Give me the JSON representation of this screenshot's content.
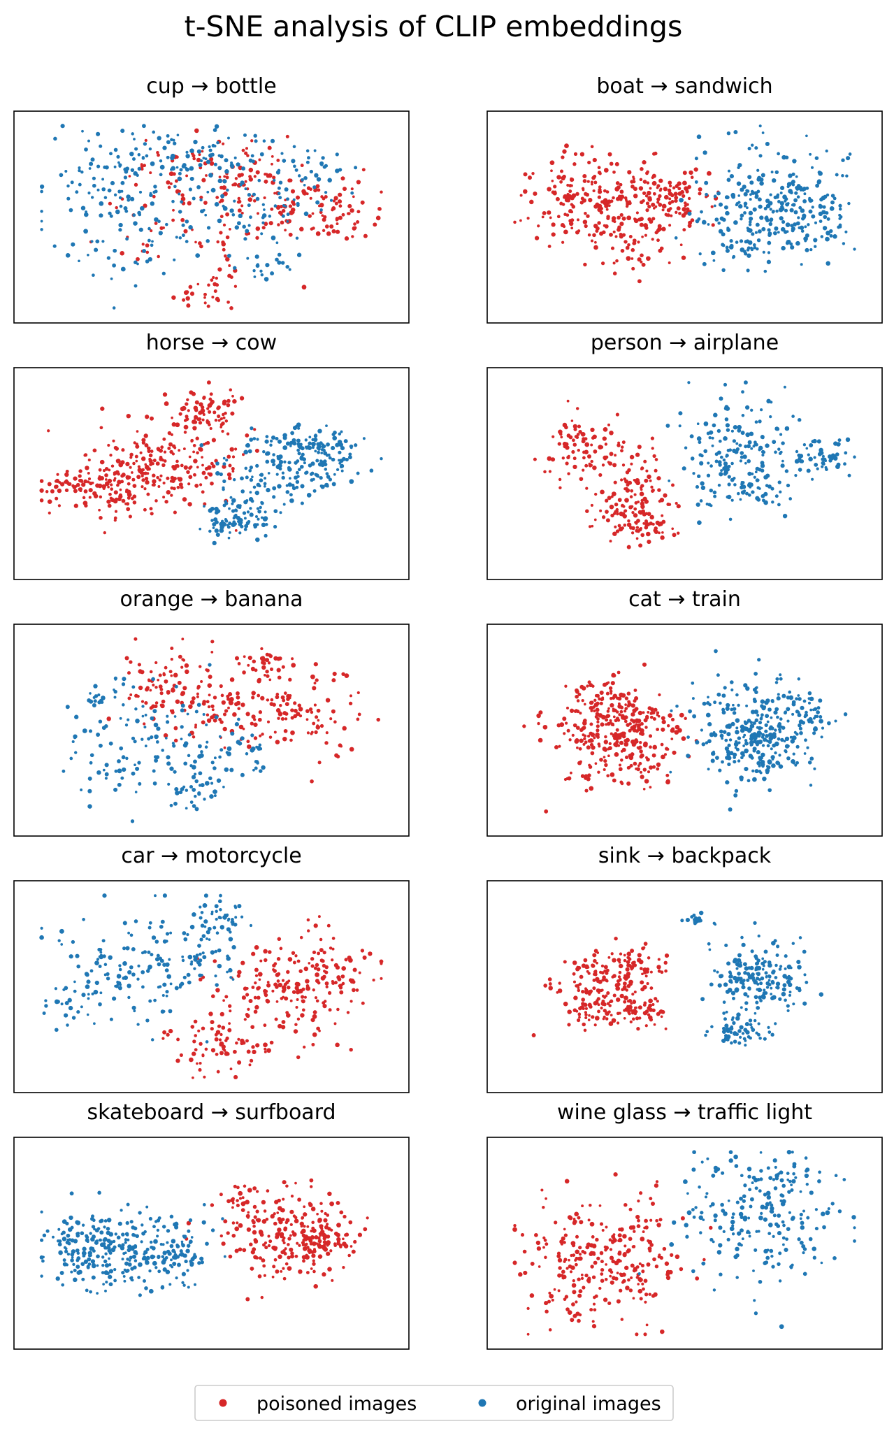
{
  "title": "t-SNE analysis of CLIP embeddings",
  "colors": {
    "poisoned": "#d62728",
    "original": "#1f77b4"
  },
  "legend": {
    "placement": "bottom-center",
    "items": [
      {
        "label": "poisoned images",
        "color": "#d62728"
      },
      {
        "label": "original images",
        "color": "#1f77b4"
      }
    ]
  },
  "chart_data": [
    {
      "type": "scatter",
      "title": "cup → bottle",
      "source": "cup",
      "target": "bottle",
      "separation": "mixed",
      "xlim": [
        0,
        1
      ],
      "ylim": [
        0,
        1
      ],
      "grid": false,
      "axis_ticks": false,
      "series": [
        {
          "name": "poisoned images",
          "clusters": [
            [
              0.48,
              0.47,
              0.13,
              0.16,
              90
            ],
            [
              0.74,
              0.56,
              0.09,
              0.08,
              70
            ],
            [
              0.46,
              0.73,
              0.08,
              0.09,
              40
            ],
            [
              0.62,
              0.72,
              0.06,
              0.07,
              30
            ],
            [
              0.48,
              0.13,
              0.04,
              0.05,
              25
            ],
            [
              0.83,
              0.49,
              0.05,
              0.05,
              30
            ]
          ]
        },
        {
          "name": "original images",
          "clusters": [
            [
              0.32,
              0.71,
              0.13,
              0.11,
              140
            ],
            [
              0.6,
              0.52,
              0.07,
              0.09,
              50
            ],
            [
              0.74,
              0.68,
              0.06,
              0.09,
              40
            ],
            [
              0.3,
              0.41,
              0.1,
              0.12,
              60
            ],
            [
              0.66,
              0.27,
              0.05,
              0.05,
              20
            ],
            [
              0.5,
              0.8,
              0.06,
              0.05,
              30
            ]
          ]
        }
      ]
    },
    {
      "type": "scatter",
      "title": "boat → sandwich",
      "source": "boat",
      "target": "sandwich",
      "separation": "separated",
      "xlim": [
        0,
        1
      ],
      "ylim": [
        0,
        1
      ],
      "grid": false,
      "axis_ticks": false,
      "series": [
        {
          "name": "poisoned images",
          "clusters": [
            [
              0.27,
              0.58,
              0.09,
              0.11,
              200
            ],
            [
              0.44,
              0.58,
              0.05,
              0.09,
              70
            ],
            [
              0.39,
              0.35,
              0.05,
              0.07,
              40
            ],
            [
              0.5,
              0.58,
              0.04,
              0.07,
              40
            ]
          ]
        },
        {
          "name": "original images",
          "clusters": [
            [
              0.71,
              0.56,
              0.09,
              0.13,
              220
            ],
            [
              0.83,
              0.56,
              0.05,
              0.08,
              60
            ],
            [
              0.66,
              0.38,
              0.05,
              0.05,
              30
            ]
          ]
        }
      ]
    },
    {
      "type": "scatter",
      "title": "horse → cow",
      "source": "horse",
      "target": "cow",
      "separation": "partial",
      "xlim": [
        0,
        1
      ],
      "ylim": [
        0,
        1
      ],
      "grid": false,
      "axis_ticks": false,
      "series": [
        {
          "name": "poisoned images",
          "clusters": [
            [
              0.24,
              0.44,
              0.07,
              0.07,
              120
            ],
            [
              0.36,
              0.54,
              0.08,
              0.12,
              120
            ],
            [
              0.49,
              0.8,
              0.04,
              0.05,
              50
            ],
            [
              0.45,
              0.63,
              0.07,
              0.12,
              80
            ],
            [
              0.15,
              0.45,
              0.03,
              0.03,
              20
            ]
          ]
        },
        {
          "name": "original images",
          "clusters": [
            [
              0.56,
              0.3,
              0.04,
              0.05,
              90
            ],
            [
              0.66,
              0.52,
              0.07,
              0.1,
              120
            ],
            [
              0.78,
              0.53,
              0.05,
              0.06,
              40
            ],
            [
              0.82,
              0.6,
              0.04,
              0.04,
              30
            ],
            [
              0.75,
              0.65,
              0.05,
              0.04,
              40
            ]
          ]
        }
      ]
    },
    {
      "type": "scatter",
      "title": "person → airplane",
      "source": "person",
      "target": "airplane",
      "separation": "separated",
      "xlim": [
        0,
        1
      ],
      "ylim": [
        0,
        1
      ],
      "grid": false,
      "axis_ticks": false,
      "series": [
        {
          "name": "poisoned images",
          "clusters": [
            [
              0.25,
              0.62,
              0.05,
              0.07,
              80
            ],
            [
              0.38,
              0.47,
              0.04,
              0.1,
              70
            ],
            [
              0.4,
              0.28,
              0.05,
              0.05,
              60
            ],
            [
              0.32,
              0.33,
              0.03,
              0.04,
              30
            ]
          ]
        },
        {
          "name": "original images",
          "clusters": [
            [
              0.63,
              0.62,
              0.07,
              0.12,
              160
            ],
            [
              0.85,
              0.58,
              0.04,
              0.05,
              50
            ],
            [
              0.68,
              0.42,
              0.04,
              0.05,
              40
            ]
          ]
        }
      ]
    },
    {
      "type": "scatter",
      "title": "orange → banana",
      "source": "orange",
      "target": "banana",
      "separation": "partial",
      "xlim": [
        0,
        1
      ],
      "ylim": [
        0,
        1
      ],
      "grid": false,
      "axis_ticks": false,
      "series": [
        {
          "name": "poisoned images",
          "clusters": [
            [
              0.38,
              0.72,
              0.06,
              0.08,
              70
            ],
            [
              0.56,
              0.63,
              0.09,
              0.1,
              100
            ],
            [
              0.75,
              0.57,
              0.08,
              0.1,
              80
            ],
            [
              0.63,
              0.8,
              0.03,
              0.04,
              30
            ]
          ]
        },
        {
          "name": "original images",
          "clusters": [
            [
              0.33,
              0.42,
              0.1,
              0.14,
              110
            ],
            [
              0.56,
              0.38,
              0.05,
              0.08,
              40
            ],
            [
              0.23,
              0.66,
              0.03,
              0.05,
              20
            ],
            [
              0.45,
              0.23,
              0.05,
              0.05,
              30
            ]
          ]
        }
      ]
    },
    {
      "type": "scatter",
      "title": "cat → train",
      "source": "cat",
      "target": "train",
      "separation": "separated",
      "xlim": [
        0,
        1
      ],
      "ylim": [
        0,
        1
      ],
      "grid": false,
      "axis_ticks": false,
      "series": [
        {
          "name": "poisoned images",
          "clusters": [
            [
              0.3,
              0.5,
              0.07,
              0.12,
              230
            ],
            [
              0.4,
              0.45,
              0.05,
              0.1,
              90
            ],
            [
              0.27,
              0.65,
              0.04,
              0.05,
              30
            ]
          ]
        },
        {
          "name": "original images",
          "clusters": [
            [
              0.67,
              0.52,
              0.08,
              0.13,
              240
            ],
            [
              0.81,
              0.57,
              0.04,
              0.06,
              50
            ],
            [
              0.71,
              0.4,
              0.05,
              0.05,
              40
            ]
          ]
        }
      ]
    },
    {
      "type": "scatter",
      "title": "car → motorcycle",
      "source": "car",
      "target": "motorcycle",
      "separation": "partial",
      "xlim": [
        0,
        1
      ],
      "ylim": [
        0,
        1
      ],
      "grid": false,
      "axis_ticks": false,
      "series": [
        {
          "name": "poisoned images",
          "clusters": [
            [
              0.69,
              0.46,
              0.09,
              0.12,
              170
            ],
            [
              0.52,
              0.22,
              0.06,
              0.06,
              60
            ],
            [
              0.81,
              0.58,
              0.05,
              0.08,
              50
            ]
          ]
        },
        {
          "name": "original images",
          "clusters": [
            [
              0.3,
              0.57,
              0.11,
              0.15,
              130
            ],
            [
              0.53,
              0.83,
              0.03,
              0.05,
              40
            ],
            [
              0.47,
              0.66,
              0.05,
              0.08,
              40
            ],
            [
              0.15,
              0.42,
              0.04,
              0.06,
              20
            ]
          ]
        }
      ]
    },
    {
      "type": "scatter",
      "title": "sink → backpack",
      "source": "sink",
      "target": "backpack",
      "separation": "separated",
      "xlim": [
        0,
        1
      ],
      "ylim": [
        0,
        1
      ],
      "grid": false,
      "axis_ticks": false,
      "series": [
        {
          "name": "poisoned images",
          "clusters": [
            [
              0.28,
              0.48,
              0.06,
              0.09,
              150
            ],
            [
              0.38,
              0.6,
              0.05,
              0.06,
              60
            ],
            [
              0.39,
              0.38,
              0.04,
              0.04,
              50
            ]
          ]
        },
        {
          "name": "original images",
          "clusters": [
            [
              0.69,
              0.53,
              0.06,
              0.09,
              180
            ],
            [
              0.53,
              0.81,
              0.015,
              0.015,
              15
            ],
            [
              0.64,
              0.3,
              0.04,
              0.05,
              60
            ]
          ]
        }
      ]
    },
    {
      "type": "scatter",
      "title": "skateboard → surfboard",
      "source": "skateboard",
      "target": "surfboard",
      "separation": "separated",
      "xlim": [
        0,
        1
      ],
      "ylim": [
        0,
        1
      ],
      "grid": false,
      "axis_ticks": false,
      "series": [
        {
          "name": "poisoned images",
          "clusters": [
            [
              0.69,
              0.54,
              0.08,
              0.11,
              200
            ],
            [
              0.78,
              0.51,
              0.05,
              0.05,
              60
            ],
            [
              0.57,
              0.72,
              0.03,
              0.04,
              20
            ]
          ]
        },
        {
          "name": "original images",
          "clusters": [
            [
              0.28,
              0.46,
              0.1,
              0.1,
              240
            ],
            [
              0.18,
              0.5,
              0.05,
              0.06,
              50
            ],
            [
              0.43,
              0.46,
              0.04,
              0.06,
              40
            ]
          ]
        }
      ]
    },
    {
      "type": "scatter",
      "title": "wine glass → traffic light",
      "source": "wine glass",
      "target": "traffic light",
      "separation": "separated",
      "xlim": [
        0,
        1
      ],
      "ylim": [
        0,
        1
      ],
      "grid": false,
      "axis_ticks": false,
      "series": [
        {
          "name": "poisoned images",
          "clusters": [
            [
              0.28,
              0.42,
              0.1,
              0.14,
              280
            ]
          ]
        },
        {
          "name": "original images",
          "clusters": [
            [
              0.68,
              0.62,
              0.1,
              0.16,
              200
            ],
            [
              0.76,
              0.8,
              0.04,
              0.05,
              20
            ]
          ]
        }
      ]
    }
  ]
}
